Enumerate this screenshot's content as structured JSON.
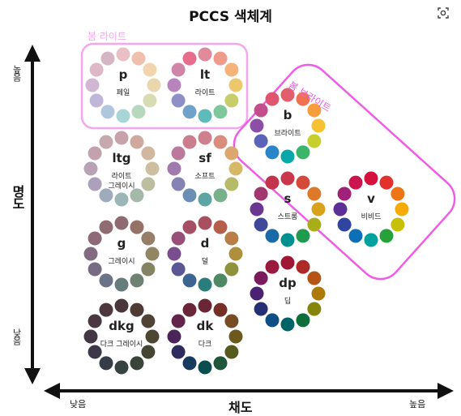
{
  "title": "PCCS  색체계",
  "corner_icon": "search-image-icon",
  "y_axis": {
    "title": "명도",
    "high": "높음",
    "low": "낮음"
  },
  "x_axis": {
    "title": "채도",
    "low": "낮음",
    "high": "높음"
  },
  "group_labels": {
    "bright_pastel": "봄 라이트",
    "bright": "봄 브라이트"
  },
  "group_colors": {
    "bright_pastel": "#f6a6ee",
    "bright": "#ef5ce6"
  },
  "tones": [
    {
      "code": "p",
      "name": "페일",
      "colors": [
        "#e9c0c6",
        "#f0c0ae",
        "#f2d5ae",
        "#ead7ae",
        "#d8dcb2",
        "#b7d8be",
        "#a8d6d6",
        "#b0c6dc",
        "#c0b7d8",
        "#d2b7d2",
        "#deb8c6",
        "#d6b5c5"
      ]
    },
    {
      "code": "lt",
      "name": "라이트",
      "colors": [
        "#e08a9c",
        "#f09a8c",
        "#f5b379",
        "#ecc86d",
        "#c8cd6b",
        "#7ec79a",
        "#5fbbb9",
        "#6ea2cb",
        "#8f8fc7",
        "#b784be",
        "#d084a8",
        "#e66d8c"
      ]
    },
    {
      "code": "ltg",
      "name": "라이트 그레이시",
      "colors": [
        "#c7a2aa",
        "#cfa99e",
        "#d2b7a0",
        "#cdbe9f",
        "#bcbea0",
        "#a4b9a9",
        "#9bb6b7",
        "#9faabb",
        "#aca1ba",
        "#b8a2b6",
        "#c3a2ae",
        "#c7a8ad"
      ]
    },
    {
      "code": "sf",
      "name": "소프트",
      "colors": [
        "#cf7f8d",
        "#da8d7c",
        "#dca66f",
        "#d6b968",
        "#b5bb66",
        "#78b08a",
        "#5ca5a3",
        "#6b8fb4",
        "#8583b3",
        "#a079ad",
        "#bb7a9b",
        "#c97d8d"
      ]
    },
    {
      "code": "g",
      "name": "그레이시",
      "colors": [
        "#8e6b72",
        "#957167",
        "#967e68",
        "#928563",
        "#838463",
        "#6f8172",
        "#677c7c",
        "#6a7387",
        "#766c84",
        "#826b80",
        "#8e6a78",
        "#8f6c72"
      ]
    },
    {
      "code": "d",
      "name": "덜",
      "colors": [
        "#a8505f",
        "#b65e4c",
        "#b97d45",
        "#ae8f3d",
        "#8e923b",
        "#4f8964",
        "#2b7d7c",
        "#3c6491",
        "#5a5794",
        "#7a4e8e",
        "#974f78",
        "#a44f66"
      ]
    },
    {
      "code": "dkg",
      "name": "다크 그레이시",
      "colors": [
        "#4b363a",
        "#503a34",
        "#504235",
        "#4c4633",
        "#444533",
        "#394539",
        "#364340",
        "#363d47",
        "#3d3848",
        "#443745",
        "#4b373f",
        "#4b373c"
      ]
    },
    {
      "code": "dk",
      "name": "다크",
      "colors": [
        "#6a2634",
        "#752f27",
        "#774b24",
        "#6c5a1d",
        "#555a1d",
        "#1f553a",
        "#0c4e4f",
        "#163b5f",
        "#2e2c5e",
        "#4b255a",
        "#62244b",
        "#6a2638"
      ]
    },
    {
      "code": "b",
      "name": "브라이트",
      "colors": [
        "#e35d6a",
        "#f07152",
        "#f89d3c",
        "#f7c12f",
        "#c6d02c",
        "#3bb56a",
        "#0aa7a8",
        "#2a86c8",
        "#5b63b8",
        "#8d4fa6",
        "#c24e8b",
        "#e0546f"
      ]
    },
    {
      "code": "s",
      "name": "스트롱",
      "colors": [
        "#c9374b",
        "#d5493a",
        "#de7a27",
        "#d8a21d",
        "#a8ad18",
        "#1f9a4f",
        "#00908f",
        "#1a6aa8",
        "#3f4899",
        "#6a3690",
        "#a2366f",
        "#c3344d"
      ]
    },
    {
      "code": "v",
      "name": "비비드",
      "colors": [
        "#d4103d",
        "#e3322d",
        "#ee7414",
        "#f6ac06",
        "#c7c004",
        "#27a23b",
        "#00a2a0",
        "#0d6fb8",
        "#2f45a0",
        "#5b2f96",
        "#a0207a",
        "#cc1550"
      ]
    },
    {
      "code": "dp",
      "name": "딥",
      "colors": [
        "#a01735",
        "#ae2826",
        "#b55415",
        "#ad7a09",
        "#858609",
        "#0d6d3b",
        "#006466",
        "#0d4e86",
        "#262f74",
        "#4a2271",
        "#7a1c5c",
        "#9a193f"
      ]
    }
  ]
}
